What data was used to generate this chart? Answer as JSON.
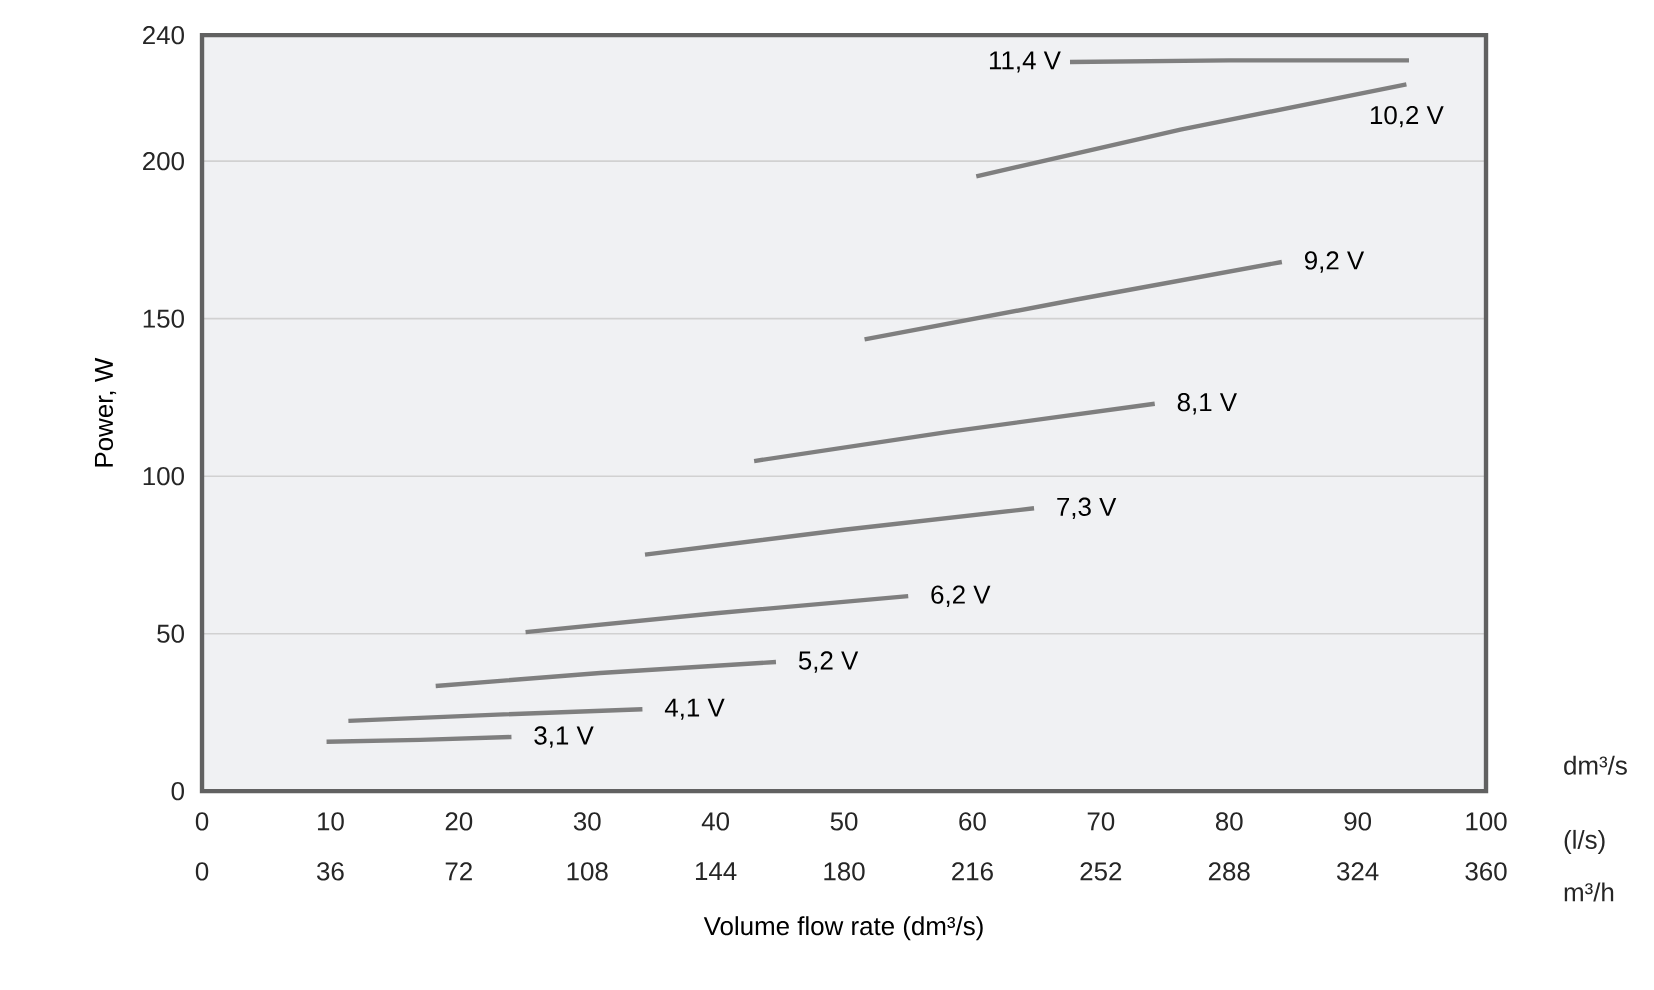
{
  "chart_data": {
    "type": "line",
    "xlabel": "Volume flow rate (dm³/s)",
    "ylabel": "Power, W",
    "xlim": [
      0,
      100
    ],
    "xticks": [
      0,
      10,
      20,
      30,
      40,
      50,
      60,
      70,
      80,
      90,
      100
    ],
    "x2lim": [
      0,
      360
    ],
    "x2ticks": [
      0,
      36,
      72,
      108,
      144,
      180,
      216,
      252,
      288,
      324,
      360
    ],
    "ylim": [
      0,
      240
    ],
    "yticks": [
      0,
      50,
      100,
      150,
      200,
      240
    ],
    "grid": "y",
    "annotations": [
      "dm³/s",
      "(l/s)",
      "m³/h"
    ],
    "series": [
      {
        "name": "3,1 V",
        "color": "#7f7f7f",
        "x": [
          9.7,
          17,
          24.1
        ],
        "values": [
          15.7,
          16.3,
          17.2
        ]
      },
      {
        "name": "4,1 V",
        "color": "#7f7f7f",
        "x": [
          11.4,
          23,
          34.3
        ],
        "values": [
          22.3,
          24.3,
          26.0
        ]
      },
      {
        "name": "5,2 V",
        "color": "#7f7f7f",
        "x": [
          18.2,
          31,
          44.7
        ],
        "values": [
          33.4,
          37.5,
          41.0
        ]
      },
      {
        "name": "6,2 V",
        "color": "#7f7f7f",
        "x": [
          25.2,
          40,
          55.0
        ],
        "values": [
          50.5,
          56.5,
          61.9
        ]
      },
      {
        "name": "7,3 V",
        "color": "#7f7f7f",
        "x": [
          34.5,
          50,
          64.8
        ],
        "values": [
          75.1,
          83,
          89.8
        ]
      },
      {
        "name": "8,1 V",
        "color": "#7f7f7f",
        "x": [
          43.0,
          58,
          74.2
        ],
        "values": [
          104.8,
          114,
          123.0
        ]
      },
      {
        "name": "9,2 V",
        "color": "#7f7f7f",
        "x": [
          51.6,
          68,
          84.1
        ],
        "values": [
          143.4,
          156,
          168.0
        ]
      },
      {
        "name": "10,2 V",
        "color": "#7f7f7f",
        "x": [
          60.3,
          76.2,
          93.8
        ],
        "values": [
          195.2,
          210,
          224.4
        ]
      },
      {
        "name": "11,4 V",
        "color": "#7f7f7f",
        "x": [
          67.6,
          80,
          94.0
        ],
        "values": [
          231.5,
          232,
          232
        ]
      }
    ]
  }
}
